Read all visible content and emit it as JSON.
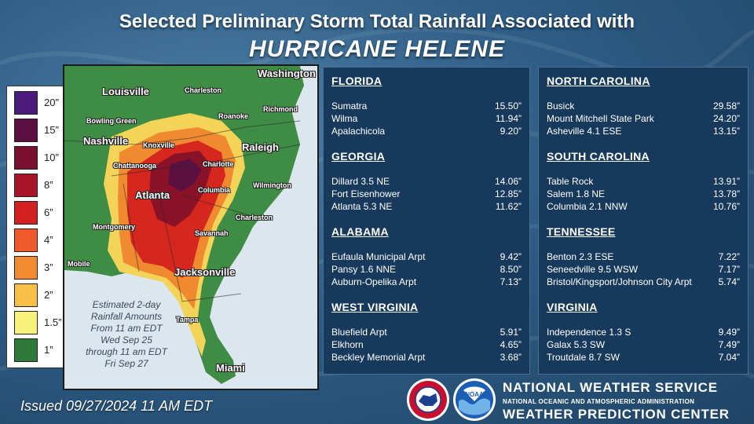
{
  "title_line1": "Selected Preliminary Storm Total Rainfall Associated with",
  "title_line2": "HURRICANE HELENE",
  "legend": [
    {
      "label": "20”",
      "color": "#4b1a7a"
    },
    {
      "label": "15”",
      "color": "#5a1040"
    },
    {
      "label": "10”",
      "color": "#7a1030"
    },
    {
      "label": "8”",
      "color": "#a81428"
    },
    {
      "label": "6”",
      "color": "#d32020"
    },
    {
      "label": "4”",
      "color": "#ee5a2a"
    },
    {
      "label": "3”",
      "color": "#f28a30"
    },
    {
      "label": "2”",
      "color": "#f5c045"
    },
    {
      "label": "1.5”",
      "color": "#f6f17a"
    },
    {
      "label": "1”",
      "color": "#2f7a3a"
    }
  ],
  "map": {
    "cities": {
      "washington": "Washington",
      "louisville": "Louisville",
      "charleston_wv": "Charleston",
      "richmond": "Richmond",
      "roanoke": "Roanoke",
      "bowling_green": "Bowling Green",
      "nashville": "Nashville",
      "knoxville": "Knoxville",
      "raleigh": "Raleigh",
      "chattanooga": "Chattanooga",
      "charlotte": "Charlotte",
      "wilmington": "Wilmington",
      "atlanta": "Atlanta",
      "columbia": "Columbia",
      "charleston_sc": "Charleston",
      "montgomery": "Montgomery",
      "savannah": "Savannah",
      "mobile": "Mobile",
      "jacksonville": "Jacksonville",
      "tampa": "Tampa",
      "miami": "Miami"
    },
    "note": [
      "Estimated 2-day",
      "Rainfall Amounts",
      "From 11 am EDT",
      "Wed Sep 25",
      "through 11 am EDT",
      "Fri Sep 27"
    ]
  },
  "left_panel": [
    {
      "state": "FLORIDA",
      "rows": [
        {
          "location": "Sumatra",
          "value": "15.50”"
        },
        {
          "location": "Wilma",
          "value": "11.94”"
        },
        {
          "location": "Apalachicola",
          "value": "9.20”"
        }
      ]
    },
    {
      "state": "GEORGIA",
      "rows": [
        {
          "location": "Dillard 3.5 NE",
          "value": "14.06”"
        },
        {
          "location": "Fort Eisenhower",
          "value": "12.85”"
        },
        {
          "location": "Atlanta 5.3 NE",
          "value": "11.62”"
        }
      ]
    },
    {
      "state": "ALABAMA",
      "rows": [
        {
          "location": "Eufaula Municipal Arpt",
          "value": "9.42”"
        },
        {
          "location": "Pansy 1.6 NNE",
          "value": "8.50”"
        },
        {
          "location": "Auburn-Opelika Arpt",
          "value": "7.13”"
        }
      ]
    },
    {
      "state": "WEST VIRGINIA",
      "rows": [
        {
          "location": "Bluefield Arpt",
          "value": "5.91”"
        },
        {
          "location": "Elkhorn",
          "value": "4.65”"
        },
        {
          "location": "Beckley Memorial Arpt",
          "value": "3.68”"
        }
      ]
    }
  ],
  "right_panel": [
    {
      "state": "NORTH CAROLINA",
      "rows": [
        {
          "location": "Busick",
          "value": "29.58”"
        },
        {
          "location": "Mount Mitchell State Park",
          "value": "24.20”"
        },
        {
          "location": "Asheville 4.1 ESE",
          "value": "13.15”"
        }
      ]
    },
    {
      "state": "SOUTH CAROLINA",
      "rows": [
        {
          "location": "Table Rock",
          "value": "13.91”"
        },
        {
          "location": "Salem 1.8 NE",
          "value": "13.78”"
        },
        {
          "location": "Columbia 2.1 NNW",
          "value": "10.76”"
        }
      ]
    },
    {
      "state": "TENNESSEE",
      "rows": [
        {
          "location": "Benton 2.3 ESE",
          "value": "7.22”"
        },
        {
          "location": "Seneedville 9.5 WSW",
          "value": "7.17”"
        },
        {
          "location": "Bristol/Kingsport/Johnson City Arpt",
          "value": "5.74”"
        }
      ]
    },
    {
      "state": "VIRGINIA",
      "rows": [
        {
          "location": "Independence 1.3 S",
          "value": "9.49”"
        },
        {
          "location": "Galax 5.3 SW",
          "value": "7.49”"
        },
        {
          "location": "Troutdale 8.7 SW",
          "value": "7.04”"
        }
      ]
    }
  ],
  "issued": "Issued 09/27/2024  11 AM EDT",
  "footer": {
    "nws": "NATIONAL WEATHER SERVICE",
    "noaa_full": "NATIONAL OCEANIC AND ATMOSPHERIC ADMINISTRATION",
    "wpc": "WEATHER PREDICTION CENTER",
    "nws_logo_text": "NATIONAL WEATHER SERVICE",
    "noaa_logo_text": "NOAA"
  },
  "colors": {
    "panel_bg": "#173a5c",
    "background": "#2e5d86",
    "text": "#ffffff"
  }
}
